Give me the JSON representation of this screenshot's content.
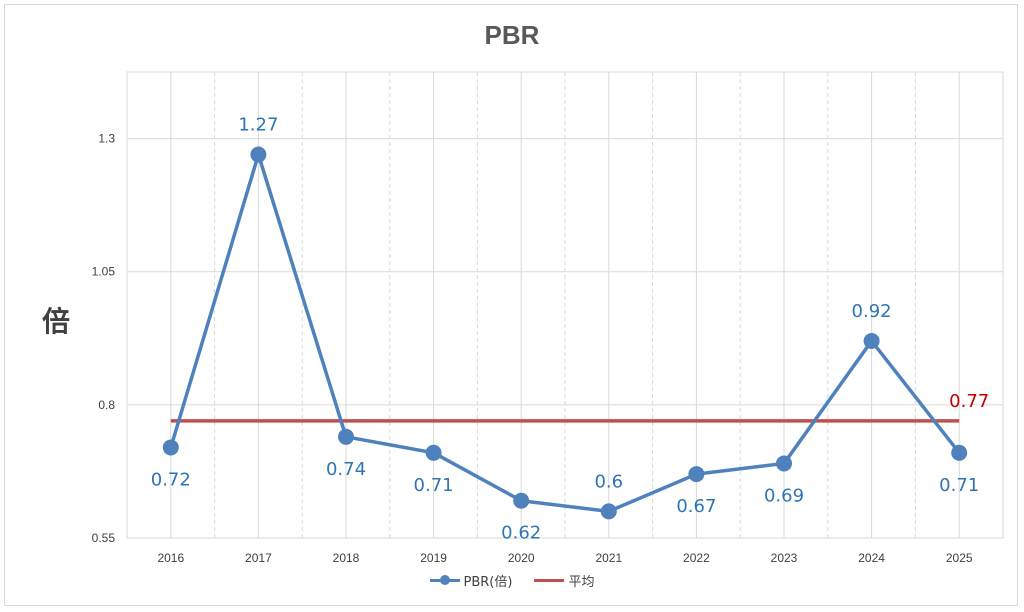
{
  "chart_data": {
    "type": "line",
    "title": "PBR",
    "ylabel": "倍",
    "xlabel": "",
    "categories": [
      "2016",
      "2017",
      "2018",
      "2019",
      "2020",
      "2021",
      "2022",
      "2023",
      "2024",
      "2025"
    ],
    "ylim": [
      0.55,
      1.425
    ],
    "yticks": [
      0.55,
      0.8,
      1.05,
      1.3
    ],
    "ytick_labels": [
      "0.55",
      "0.8",
      "1.05",
      "1.3"
    ],
    "grid": true,
    "legend_position": "bottom",
    "series": [
      {
        "name": "PBR(倍)",
        "values": [
          0.72,
          1.27,
          0.74,
          0.71,
          0.62,
          0.6,
          0.67,
          0.69,
          0.92,
          0.71
        ],
        "labels": [
          "0.72",
          "1.27",
          "0.74",
          "0.71",
          "0.62",
          "0.6",
          "0.67",
          "0.69",
          "0.92",
          "0.71"
        ],
        "label_positions": [
          "below",
          "above",
          "below",
          "below",
          "below",
          "above",
          "below",
          "below",
          "above",
          "below"
        ],
        "color": "#4F81BD",
        "label_color": "#2E75B6"
      },
      {
        "name": "平均",
        "values": [
          0.77,
          0.77,
          0.77,
          0.77,
          0.77,
          0.77,
          0.77,
          0.77,
          0.77,
          0.77
        ],
        "end_label": "0.77",
        "color": "#C0504D",
        "label_color": "#C00000"
      }
    ]
  }
}
